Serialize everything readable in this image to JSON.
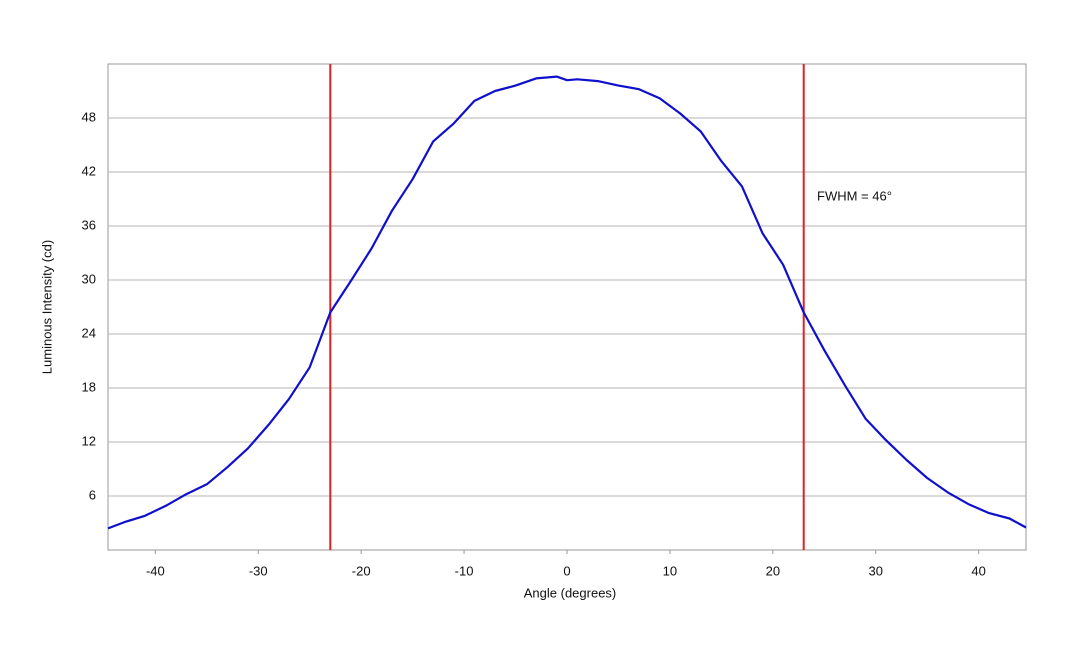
{
  "chart_data": {
    "type": "line",
    "x_label": "Angle (degrees)",
    "y_label": "Luminous Intensity (cd)",
    "annotation": "FWHM = 46°",
    "x": [
      -44.6,
      -43,
      -41,
      -39,
      -37,
      -35,
      -33,
      -31,
      -29,
      -27,
      -25,
      -23,
      -21,
      -19,
      -17,
      -15,
      -13,
      -11,
      -9,
      -7,
      -5,
      -3,
      -1,
      0,
      1,
      3,
      5,
      7,
      9,
      11,
      13,
      15,
      17,
      19,
      21,
      23,
      25,
      27,
      29,
      31,
      33,
      35,
      37,
      39,
      41,
      43,
      44.6
    ],
    "series": [
      {
        "name": "Luminous Intensity",
        "color": "#1010cc",
        "values": [
          2.4,
          3.1,
          3.8,
          4.9,
          6.2,
          7.3,
          9.2,
          11.3,
          13.9,
          16.8,
          20.3,
          26.4,
          29.9,
          33.5,
          37.7,
          41.2,
          45.4,
          47.4,
          49.9,
          51.0,
          51.6,
          52.4,
          52.6,
          52.2,
          52.3,
          52.1,
          51.6,
          51.2,
          50.2,
          48.5,
          46.5,
          43.2,
          40.4,
          35.2,
          31.7,
          26.4,
          22.2,
          18.3,
          14.6,
          12.2,
          10.0,
          8.0,
          6.4,
          5.1,
          4.1,
          3.5,
          2.5
        ]
      }
    ],
    "vlines": [
      -23,
      23
    ],
    "vline_color": "#dd2222",
    "xlim": [
      -44.6,
      44.6
    ],
    "ylim": [
      0,
      54
    ],
    "xticks": [
      -40,
      -30,
      -20,
      -10,
      0,
      10,
      20,
      30,
      40
    ],
    "yticks": [
      6,
      12,
      18,
      24,
      30,
      36,
      42,
      48
    ],
    "grid": true
  }
}
